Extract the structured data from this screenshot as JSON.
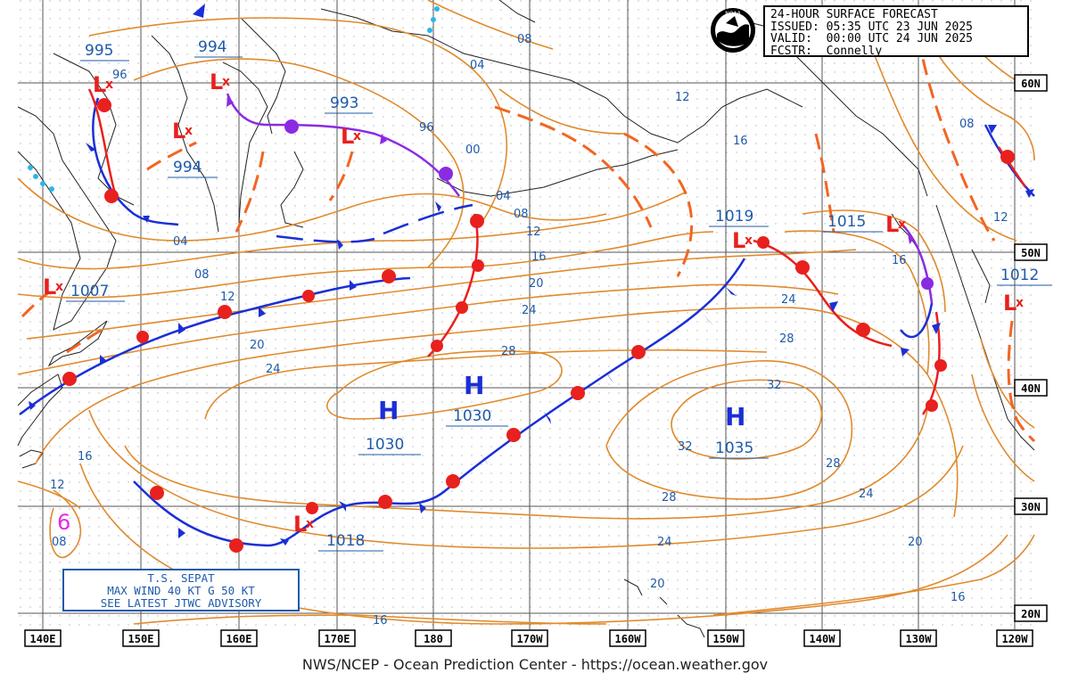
{
  "chart": {
    "title": "24-HOUR SURFACE FORECAST",
    "issued": "ISSUED: 05:35 UTC 23 JUN 2025",
    "valid": "VALID:  00:00 UTC 24 JUN 2025",
    "forecaster": "FCSTR:  Connelly",
    "logo_text": "NOAA",
    "credit": "NWS/NCEP - Ocean Prediction Center - https://ocean.weather.gov"
  },
  "longitudes": [
    "140E",
    "150E",
    "160E",
    "170E",
    "180",
    "170W",
    "160W",
    "150W",
    "140W",
    "130W",
    "120W"
  ],
  "latitudes": [
    "60N",
    "50N",
    "40N",
    "30N",
    "20N"
  ],
  "pressure_systems": [
    {
      "type": "L",
      "value": "995"
    },
    {
      "type": "L",
      "value": "994"
    },
    {
      "type": "L",
      "value": "994"
    },
    {
      "type": "L",
      "value": "993"
    },
    {
      "type": "L",
      "value": "1007"
    },
    {
      "type": "L",
      "value": "1018"
    },
    {
      "type": "L",
      "value": "1019"
    },
    {
      "type": "L",
      "value": "1015"
    },
    {
      "type": "L",
      "value": "1012"
    },
    {
      "type": "H",
      "value": "1030"
    },
    {
      "type": "H",
      "value": "1030"
    },
    {
      "type": "H",
      "value": "1035"
    }
  ],
  "isobar_labels": [
    "96",
    "96",
    "00",
    "04",
    "04",
    "04",
    "08",
    "08",
    "08",
    "08",
    "12",
    "12",
    "12",
    "12",
    "16",
    "16",
    "16",
    "16",
    "16",
    "20",
    "20",
    "20",
    "20",
    "24",
    "24",
    "24",
    "24",
    "24",
    "28",
    "28",
    "28",
    "28",
    "32",
    "32",
    "08",
    "12",
    "16"
  ],
  "tropical_storm": {
    "symbol": "6",
    "lines": [
      "T.S. SEPAT",
      "MAX WIND 40 KT G 50 KT",
      "SEE LATEST JTWC ADVISORY"
    ]
  },
  "colors": {
    "isobar": "#e08a2c",
    "trough": "#f26522",
    "cold": "#1b2fd6",
    "warm": "#e8201e",
    "occluded": "#8a2be2",
    "low": "#e8201e",
    "high": "#1b2fd6",
    "land": "#222222",
    "label": "#1f5aa8",
    "storm": "#e62be6"
  }
}
